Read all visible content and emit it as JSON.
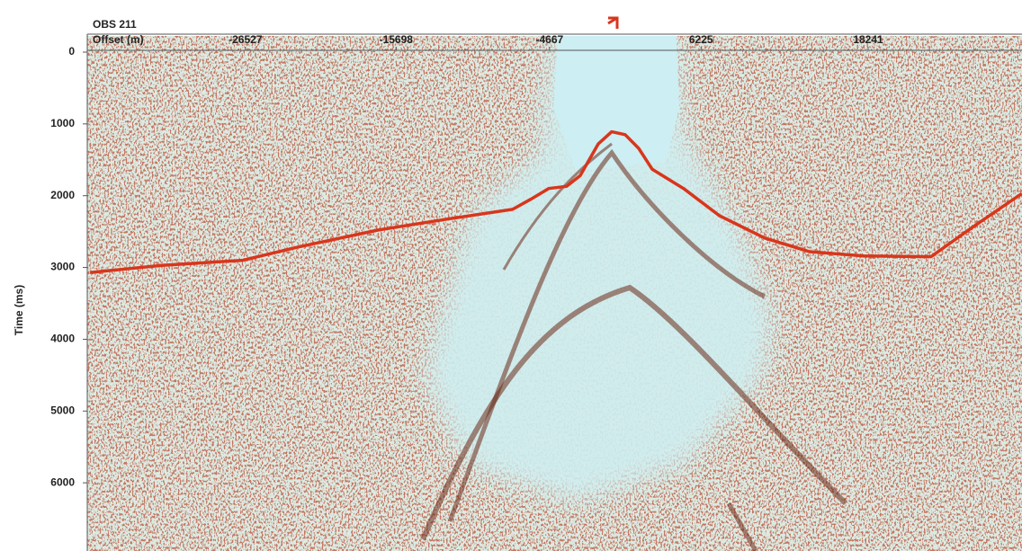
{
  "chart_data": {
    "type": "line",
    "title": "OBS 211",
    "xlabel": "Offset (m)",
    "ylabel": "Time (ms)",
    "series": [
      {
        "color": "#d8361c",
        "x": [
          -37700,
          -32540,
          -26720,
          -22840,
          -17020,
          -11840,
          -7320,
          -6020,
          -4730,
          -3440,
          -2460,
          -1170,
          -200,
          770,
          1740,
          2710,
          4970,
          7560,
          10800,
          14030,
          17910,
          22760,
          25670,
          29290
        ],
        "values": [
          3070,
          2970,
          2900,
          2720,
          2480,
          2320,
          2190,
          2050,
          1900,
          1870,
          1720,
          1280,
          1110,
          1150,
          1340,
          1630,
          1900,
          2280,
          2590,
          2780,
          2840,
          2850,
          2450,
          1970
        ]
      }
    ],
    "xlim": [
      -37900,
      29300
    ],
    "xticks": [
      -26527,
      -15698,
      -4667,
      6225,
      18241
    ],
    "ylim": [
      0,
      6950
    ],
    "yticks": [
      0,
      1000,
      2000,
      3000,
      4000,
      5000,
      6000
    ],
    "y_inverted": true,
    "x_axis_position": "top"
  }
}
